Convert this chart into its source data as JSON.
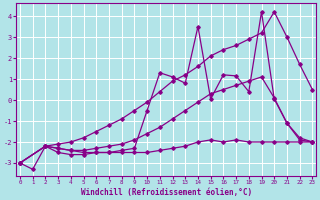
{
  "xlabel": "Windchill (Refroidissement éolien,°C)",
  "background_color": "#b2e4e8",
  "line_color": "#880088",
  "grid_color": "#ffffff",
  "x_ticks": [
    0,
    1,
    2,
    3,
    4,
    5,
    6,
    7,
    8,
    9,
    10,
    11,
    12,
    13,
    14,
    15,
    16,
    17,
    18,
    19,
    20,
    21,
    22,
    23
  ],
  "yticks": [
    -3,
    -2,
    -1,
    0,
    1,
    2,
    3,
    4
  ],
  "ylim": [
    -3.6,
    4.6
  ],
  "xlim": [
    -0.3,
    23.3
  ],
  "series": {
    "line_jagged": {
      "x": [
        0,
        1,
        2,
        3,
        4,
        5,
        6,
        7,
        8,
        9,
        10,
        11,
        12,
        13,
        14,
        15,
        16,
        17,
        18,
        19,
        20,
        21,
        22,
        23
      ],
      "y": [
        -3.0,
        -3.3,
        -2.2,
        -2.5,
        -2.6,
        -2.6,
        -2.5,
        -2.5,
        -2.4,
        -2.3,
        -0.5,
        1.3,
        1.1,
        0.8,
        3.5,
        0.05,
        1.2,
        1.15,
        0.4,
        4.2,
        0.05,
        -1.1,
        -1.9,
        -2.0
      ]
    },
    "line_upper_ramp": {
      "x": [
        0,
        2,
        3,
        4,
        5,
        6,
        7,
        8,
        9,
        10,
        11,
        12,
        13,
        14,
        15,
        16,
        17,
        18,
        19,
        20,
        21,
        22,
        23
      ],
      "y": [
        -3.0,
        -2.2,
        -2.1,
        -2.0,
        -1.8,
        -1.5,
        -1.2,
        -0.9,
        -0.5,
        -0.1,
        0.4,
        0.9,
        1.2,
        1.6,
        2.1,
        2.4,
        2.6,
        2.9,
        3.2,
        4.2,
        3.0,
        1.7,
        0.5
      ]
    },
    "line_mid_ramp": {
      "x": [
        0,
        2,
        3,
        4,
        5,
        6,
        7,
        8,
        9,
        10,
        11,
        12,
        13,
        14,
        15,
        16,
        17,
        18,
        19,
        20,
        21,
        22,
        23
      ],
      "y": [
        -3.0,
        -2.2,
        -2.3,
        -2.4,
        -2.4,
        -2.3,
        -2.2,
        -2.1,
        -1.9,
        -1.6,
        -1.3,
        -0.9,
        -0.5,
        -0.1,
        0.3,
        0.5,
        0.7,
        0.9,
        1.1,
        0.1,
        -1.1,
        -1.8,
        -2.0
      ]
    },
    "line_lower_flat": {
      "x": [
        0,
        2,
        3,
        4,
        5,
        6,
        7,
        8,
        9,
        10,
        11,
        12,
        13,
        14,
        15,
        16,
        17,
        18,
        19,
        20,
        21,
        22,
        23
      ],
      "y": [
        -3.0,
        -2.2,
        -2.3,
        -2.4,
        -2.5,
        -2.5,
        -2.5,
        -2.5,
        -2.5,
        -2.5,
        -2.4,
        -2.3,
        -2.2,
        -2.0,
        -1.9,
        -2.0,
        -1.9,
        -2.0,
        -2.0,
        -2.0,
        -2.0,
        -2.0,
        -2.0
      ]
    }
  }
}
